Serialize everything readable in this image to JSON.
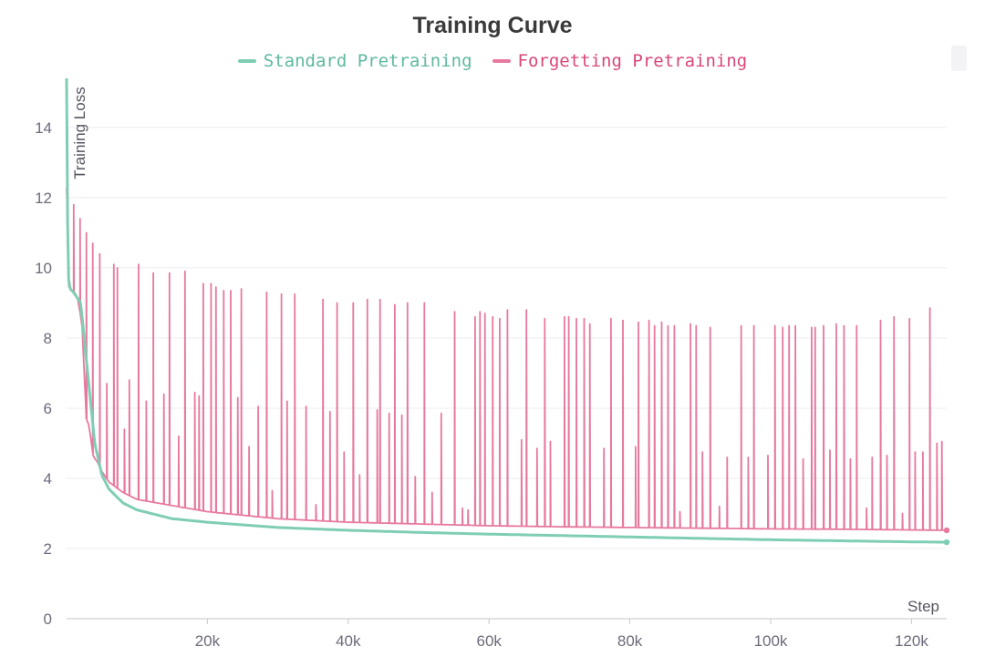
{
  "chart_data": {
    "type": "line",
    "title": "Training Curve",
    "xlabel": "Step",
    "ylabel": "Training Loss",
    "xlim": [
      0,
      125000
    ],
    "ylim": [
      0,
      15.4
    ],
    "x_ticks": [
      20000,
      40000,
      60000,
      80000,
      100000,
      120000
    ],
    "x_tick_labels": [
      "20k",
      "40k",
      "60k",
      "80k",
      "100k",
      "120k"
    ],
    "y_ticks": [
      0,
      2,
      4,
      6,
      8,
      10,
      12,
      14
    ],
    "y_tick_labels": [
      "0",
      "2",
      "4",
      "6",
      "8",
      "10",
      "12",
      "14"
    ],
    "grid": true,
    "legend_position": "top-center",
    "series": [
      {
        "name": "Standard Pretraining",
        "color": "#7fcdb5",
        "x": [
          0,
          200,
          500,
          1000,
          2000,
          3000,
          4000,
          5000,
          6000,
          8000,
          10000,
          15000,
          20000,
          30000,
          40000,
          50000,
          60000,
          70000,
          80000,
          90000,
          100000,
          110000,
          120000,
          125000
        ],
        "values": [
          15.4,
          9.8,
          9.4,
          9.3,
          9.0,
          7.0,
          5.0,
          4.1,
          3.7,
          3.3,
          3.1,
          2.85,
          2.75,
          2.6,
          2.52,
          2.46,
          2.41,
          2.37,
          2.33,
          2.29,
          2.25,
          2.22,
          2.19,
          2.18
        ]
      },
      {
        "name": "Forgetting Pretraining",
        "color": "#e7799f",
        "x": [
          0,
          150,
          400,
          900,
          1500,
          2200,
          2800,
          3200,
          3800,
          4300,
          5000,
          6000,
          8000,
          10000,
          20000,
          30000,
          40000,
          50000,
          60000,
          70000,
          80000,
          90000,
          100000,
          110000,
          120000,
          125000
        ],
        "values": [
          12.3,
          9.6,
          9.4,
          9.35,
          9.2,
          8.4,
          5.7,
          5.5,
          4.6,
          4.5,
          4.2,
          3.9,
          3.6,
          3.4,
          3.05,
          2.85,
          2.75,
          2.7,
          2.65,
          2.62,
          2.6,
          2.58,
          2.56,
          2.55,
          2.53,
          2.52
        ],
        "spike_steps": [
          1000,
          1900,
          2800,
          3700,
          4700,
          5700,
          6700,
          7200,
          8200,
          8900,
          10200,
          11300,
          12300,
          13800,
          14600,
          15900,
          16800,
          18200,
          18800,
          19400,
          20500,
          21200,
          22300,
          23300,
          24300,
          24800,
          25900,
          27200,
          28400,
          29200,
          30500,
          31300,
          32400,
          34000,
          35400,
          36400,
          37400,
          38400,
          39400,
          40700,
          41600,
          42700,
          44100,
          44500,
          45800,
          46600,
          47600,
          48400,
          49500,
          50800,
          51900,
          53200,
          55100,
          56200,
          57000,
          58000,
          58700,
          59400,
          60500,
          61500,
          62600,
          64600,
          65300,
          66800,
          67900,
          68700,
          70700,
          71300,
          72400,
          73500,
          74300,
          76300,
          77300,
          79000,
          80800,
          81200,
          82700,
          83500,
          84500,
          85400,
          86300,
          87100,
          88600,
          89400,
          90300,
          91400,
          92700,
          93800,
          95800,
          96800,
          97600,
          99600,
          100600,
          101700,
          102600,
          103500,
          104600,
          105800,
          106300,
          107500,
          108400,
          109300,
          110400,
          111300,
          112200,
          113600,
          114400,
          115600,
          116500,
          117500,
          118700,
          119700,
          120500,
          121600,
          122600,
          123600,
          124300,
          125000
        ],
        "spike_peaks": [
          11.8,
          11.4,
          11.0,
          10.7,
          10.4,
          6.7,
          10.1,
          10.0,
          5.4,
          6.8,
          10.1,
          6.2,
          9.85,
          6.4,
          9.85,
          5.2,
          9.9,
          6.45,
          6.35,
          9.55,
          9.55,
          9.45,
          9.35,
          9.35,
          6.3,
          9.4,
          4.9,
          6.05,
          9.3,
          3.65,
          9.25,
          6.2,
          9.25,
          6.05,
          3.25,
          9.1,
          5.9,
          9.0,
          4.75,
          9.0,
          4.1,
          9.1,
          5.95,
          9.1,
          5.85,
          8.95,
          5.8,
          9.0,
          4.05,
          9.0,
          3.6,
          5.85,
          8.75,
          3.15,
          3.1,
          8.6,
          8.75,
          8.7,
          8.6,
          8.55,
          8.8,
          5.1,
          8.8,
          4.85,
          8.55,
          5.05,
          8.6,
          8.6,
          8.55,
          8.55,
          8.4,
          4.85,
          8.55,
          8.5,
          4.9,
          8.45,
          8.5,
          8.35,
          8.45,
          8.35,
          8.35,
          3.05,
          8.4,
          8.35,
          4.75,
          8.3,
          3.2,
          4.6,
          8.35,
          4.6,
          8.35,
          4.65,
          8.35,
          8.3,
          8.35,
          8.35,
          4.55,
          8.3,
          8.3,
          8.35,
          4.8,
          8.4,
          8.35,
          4.55,
          8.35,
          3.15,
          4.6,
          8.5,
          4.65,
          8.6,
          3.0,
          8.55,
          4.75,
          4.75,
          8.85,
          5.0,
          5.05,
          4.95
        ]
      }
    ]
  }
}
